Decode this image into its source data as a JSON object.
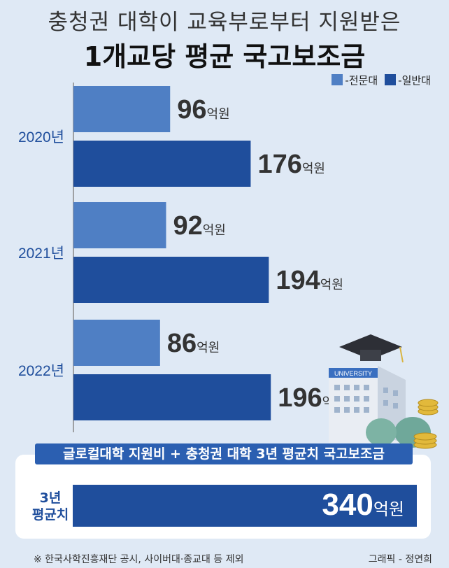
{
  "title": {
    "line1": "충청권 대학이 교육부로부터 지원받은",
    "line2": "1개교당 평균 국고보조금"
  },
  "legend": {
    "items": [
      {
        "label": "-전문대",
        "color": "#4f7fc4"
      },
      {
        "label": "-일반대",
        "color": "#1f4e9c"
      }
    ]
  },
  "unit": "억원",
  "chart_data": {
    "type": "bar",
    "orientation": "horizontal",
    "categories": [
      "2020년",
      "2021년",
      "2022년"
    ],
    "series": [
      {
        "name": "-전문대",
        "values": [
          96,
          92,
          86
        ],
        "color": "#4f7fc4"
      },
      {
        "name": "-일반대",
        "values": [
          176,
          194,
          196
        ],
        "color": "#1f4e9c"
      }
    ],
    "value_unit": "억원",
    "grid": false,
    "legend_position": "top-right"
  },
  "summary": {
    "banner": "글로컬대학 지원비 + 충청권 대학 3년 평균치 국고보조금",
    "label_line1": "3년",
    "label_line2": "평균치",
    "value": "340",
    "unit": "억원"
  },
  "illustration": {
    "sign": "UNIVERSITY"
  },
  "footer": {
    "source": "※ 한국사학진흥재단 공시, 사이버대·종교대 등 제외",
    "credit": "그래픽 - 정연희"
  }
}
